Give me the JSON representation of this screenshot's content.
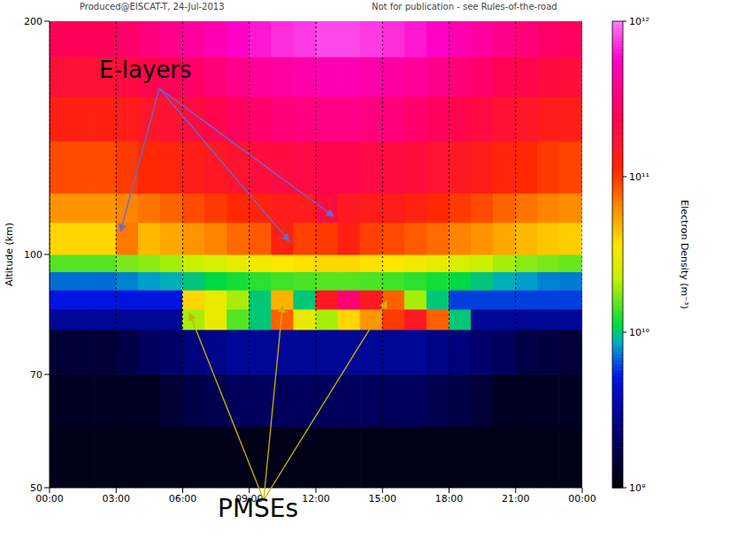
{
  "chart_data": {
    "type": "heatmap",
    "title": "Produced@EISCAT-T, 24-Jul-2013",
    "subtitle": "Not for publication - see Rules-of-the-road",
    "y_label": "Altitude (km)",
    "xlim": [
      0,
      24
    ],
    "xticks": [
      {
        "value": 0,
        "label": "00:00"
      },
      {
        "value": 3,
        "label": "03:00"
      },
      {
        "value": 6,
        "label": "06:00"
      },
      {
        "value": 9,
        "label": "09:00"
      },
      {
        "value": 12,
        "label": "12:00"
      },
      {
        "value": 15,
        "label": "15:00"
      },
      {
        "value": 18,
        "label": "18:00"
      },
      {
        "value": 21,
        "label": "21:00"
      },
      {
        "value": 24,
        "label": "00:00"
      }
    ],
    "ylim": [
      50,
      200
    ],
    "yticks": [
      50,
      70,
      100,
      200
    ],
    "log": "y",
    "grid": true,
    "x_edges": [
      0,
      1,
      2,
      3,
      4,
      5,
      6,
      7,
      8,
      9,
      10,
      11,
      12,
      13,
      14,
      15,
      16,
      17,
      18,
      19,
      20,
      21,
      22,
      23,
      24
    ],
    "y_edges": [
      50,
      60,
      70,
      80,
      85,
      90,
      95,
      100,
      110,
      120,
      140,
      160,
      180,
      200
    ],
    "cells": [
      [
        1200000000.0,
        1200000000.0,
        1200000000.0,
        1200000000.0,
        1200000000.0,
        1200000000.0,
        1200000000.0,
        1200000000.0,
        1200000000.0,
        1200000000.0,
        1200000000.0,
        1200000000.0,
        1200000000.0,
        1200000000.0,
        1200000000.0,
        1200000000.0,
        1200000000.0,
        1200000000.0,
        1200000000.0,
        1200000000.0,
        1200000000.0,
        1200000000.0,
        1200000000.0,
        1200000000.0
      ],
      [
        1300000000.0,
        1300000000.0,
        1300000000.0,
        1300000000.0,
        1300000000.0,
        1500000000.0,
        1700000000.0,
        1800000000.0,
        2000000000.0,
        2000000000.0,
        2000000000.0,
        2000000000.0,
        2000000000.0,
        2000000000.0,
        2000000000.0,
        2000000000.0,
        2000000000.0,
        1800000000.0,
        1700000000.0,
        1500000000.0,
        1300000000.0,
        1300000000.0,
        1300000000.0,
        1300000000.0
      ],
      [
        1500000000.0,
        1500000000.0,
        1500000000.0,
        1700000000.0,
        2000000000.0,
        2200000000.0,
        2500000000.0,
        2700000000.0,
        3000000000.0,
        3000000000.0,
        3000000000.0,
        3000000000.0,
        3000000000.0,
        3000000000.0,
        3000000000.0,
        3000000000.0,
        3000000000.0,
        2700000000.0,
        2500000000.0,
        2200000000.0,
        2000000000.0,
        1700000000.0,
        1600000000.0,
        1500000000.0
      ],
      [
        3000000000.0,
        3000000000.0,
        3000000000.0,
        3000000000.0,
        3000000000.0,
        3000000000.0,
        20000000000.0,
        30000000000.0,
        15000000000.0,
        10000000000.0,
        80000000000.0,
        30000000000.0,
        20000000000.0,
        40000000000.0,
        60000000000.0,
        100000000000.0,
        150000000000.0,
        80000000000.0,
        10000000000.0,
        3000000000.0,
        3000000000.0,
        3000000000.0,
        3000000000.0,
        3000000000.0
      ],
      [
        5000000000.0,
        5000000000.0,
        5000000000.0,
        5000000000.0,
        5000000000.0,
        5000000000.0,
        40000000000.0,
        30000000000.0,
        20000000000.0,
        10000000000.0,
        50000000000.0,
        10000000000.0,
        150000000000.0,
        300000000000.0,
        150000000000.0,
        80000000000.0,
        20000000000.0,
        10000000000.0,
        6000000000.0,
        6000000000.0,
        6000000000.0,
        6000000000.0,
        6000000000.0,
        6000000000.0
      ],
      [
        7000000000.0,
        7000000000.0,
        7000000000.0,
        7500000000.0,
        8200000000.0,
        8800000000.0,
        9900000000.0,
        11000000000.0,
        12000000000.0,
        13000000000.0,
        14000000000.0,
        14500000000.0,
        15000000000.0,
        15000000000.0,
        14500000000.0,
        14000000000.0,
        13000000000.0,
        12000000000.0,
        11000000000.0,
        9900000000.0,
        8800000000.0,
        8200000000.0,
        7500000000.0,
        7300000000.0
      ],
      [
        15000000000.0,
        15000000000.0,
        15000000000.0,
        17000000000.0,
        18000000000.0,
        20000000000.0,
        23000000000.0,
        26000000000.0,
        30000000000.0,
        33000000000.0,
        36000000000.0,
        38000000000.0,
        40000000000.0,
        40000000000.0,
        38000000000.0,
        36000000000.0,
        33000000000.0,
        30000000000.0,
        26000000000.0,
        23000000000.0,
        20000000000.0,
        18000000000.0,
        17000000000.0,
        16000000000.0
      ],
      [
        40000000000.0,
        40000000000.0,
        40000000000.0,
        70000000000.0,
        48000000000.0,
        53000000000.0,
        60000000000.0,
        66000000000.0,
        76000000000.0,
        83000000000.0,
        130000000000.0,
        96000000000.0,
        100000000000.0,
        130000000000.0,
        96000000000.0,
        91000000000.0,
        83000000000.0,
        76000000000.0,
        66000000000.0,
        60000000000.0,
        53000000000.0,
        48000000000.0,
        44000000000.0,
        42000000000.0
      ],
      [
        60000000000.0,
        60000000000.0,
        60000000000.0,
        66000000000.0,
        72000000000.0,
        79000000000.0,
        91000000000.0,
        99000000000.0,
        110000000000.0,
        125000000000.0,
        140000000000.0,
        140000000000.0,
        200000000000.0,
        150000000000.0,
        140000000000.0,
        140000000000.0,
        125000000000.0,
        110000000000.0,
        99000000000.0,
        91000000000.0,
        79000000000.0,
        72000000000.0,
        66000000000.0,
        63000000000.0
      ],
      [
        90000000000.0,
        90000000000.0,
        90000000000.0,
        99000000000.0,
        110000000000.0,
        120000000000.0,
        135000000000.0,
        150000000000.0,
        170000000000.0,
        190000000000.0,
        200000000000.0,
        210000000000.0,
        220000000000.0,
        220000000000.0,
        210000000000.0,
        200000000000.0,
        190000000000.0,
        170000000000.0,
        150000000000.0,
        135000000000.0,
        120000000000.0,
        110000000000.0,
        99000000000.0,
        94000000000.0
      ],
      [
        130000000000.0,
        130000000000.0,
        130000000000.0,
        140000000000.0,
        160000000000.0,
        175000000000.0,
        200000000000.0,
        220000000000.0,
        260000000000.0,
        290000000000.0,
        320000000000.0,
        330000000000.0,
        350000000000.0,
        350000000000.0,
        330000000000.0,
        320000000000.0,
        290000000000.0,
        260000000000.0,
        220000000000.0,
        200000000000.0,
        175000000000.0,
        160000000000.0,
        140000000000.0,
        135000000000.0
      ],
      [
        180000000000.0,
        180000000000.0,
        180000000000.0,
        200000000000.0,
        220000000000.0,
        240000000000.0,
        280000000000.0,
        310000000000.0,
        360000000000.0,
        400000000000.0,
        440000000000.0,
        460000000000.0,
        500000000000.0,
        500000000000.0,
        460000000000.0,
        440000000000.0,
        400000000000.0,
        360000000000.0,
        310000000000.0,
        280000000000.0,
        240000000000.0,
        220000000000.0,
        200000000000.0,
        190000000000.0
      ],
      [
        250000000000.0,
        250000000000.0,
        250000000000.0,
        280000000000.0,
        320000000000.0,
        360000000000.0,
        420000000000.0,
        480000000000.0,
        570000000000.0,
        640000000000.0,
        710000000000.0,
        760000000000.0,
        800000000000.0,
        800000000000.0,
        760000000000.0,
        710000000000.0,
        640000000000.0,
        570000000000.0,
        480000000000.0,
        420000000000.0,
        360000000000.0,
        320000000000.0,
        280000000000.0,
        260000000000.0
      ]
    ],
    "colorbar": {
      "label": "Electron Density (m⁻³)",
      "range": [
        1000000000.0,
        1000000000000.0
      ],
      "ticks": [
        {
          "value": 1000000000.0,
          "label": "10⁹"
        },
        {
          "value": 10000000000.0,
          "label": "10¹⁰"
        },
        {
          "value": 100000000000.0,
          "label": "10¹¹"
        },
        {
          "value": 1000000000000.0,
          "label": "10¹²"
        }
      ]
    },
    "annotations": [
      {
        "text": "E-layers",
        "points_to": [
          [
            3.2,
            107
          ],
          [
            10.8,
            104
          ],
          [
            12.8,
            112
          ]
        ]
      },
      {
        "text": "PMSEs",
        "points_to": [
          [
            6.3,
            84
          ],
          [
            10.5,
            86
          ],
          [
            15.2,
            87
          ]
        ]
      }
    ]
  }
}
